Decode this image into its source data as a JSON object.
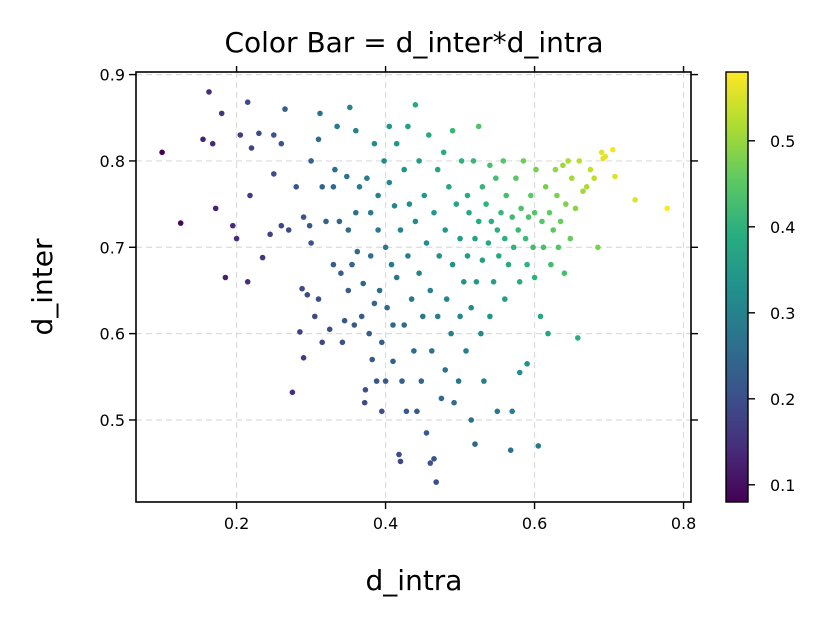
{
  "chart_data": {
    "type": "scatter",
    "title": "Color Bar = d_inter*d_intra",
    "xlabel": "d_intra",
    "ylabel": "d_inter",
    "xlim": [
      0.065,
      0.81
    ],
    "ylim": [
      0.405,
      0.903
    ],
    "xticks": [
      "0.2",
      "0.4",
      "0.6",
      "0.8"
    ],
    "yticks": [
      "0.5",
      "0.6",
      "0.7",
      "0.8",
      "0.9"
    ],
    "grid": true,
    "colormap": "viridis",
    "colorbar": {
      "range": [
        0.08,
        0.58
      ],
      "ticks": [
        "0.1",
        "0.2",
        "0.3",
        "0.4",
        "0.5"
      ]
    },
    "color_value": "d_inter*d_intra",
    "points": [
      [
        0.1,
        0.81
      ],
      [
        0.125,
        0.728
      ],
      [
        0.155,
        0.825
      ],
      [
        0.163,
        0.88
      ],
      [
        0.168,
        0.82
      ],
      [
        0.172,
        0.745
      ],
      [
        0.18,
        0.855
      ],
      [
        0.185,
        0.665
      ],
      [
        0.195,
        0.725
      ],
      [
        0.2,
        0.71
      ],
      [
        0.205,
        0.83
      ],
      [
        0.215,
        0.868
      ],
      [
        0.215,
        0.66
      ],
      [
        0.218,
        0.76
      ],
      [
        0.22,
        0.815
      ],
      [
        0.23,
        0.832
      ],
      [
        0.235,
        0.688
      ],
      [
        0.245,
        0.715
      ],
      [
        0.25,
        0.83
      ],
      [
        0.25,
        0.785
      ],
      [
        0.26,
        0.725
      ],
      [
        0.26,
        0.82
      ],
      [
        0.265,
        0.86
      ],
      [
        0.27,
        0.72
      ],
      [
        0.275,
        0.532
      ],
      [
        0.28,
        0.77
      ],
      [
        0.285,
        0.602
      ],
      [
        0.288,
        0.652
      ],
      [
        0.29,
        0.572
      ],
      [
        0.29,
        0.735
      ],
      [
        0.295,
        0.645
      ],
      [
        0.298,
        0.725
      ],
      [
        0.3,
        0.8
      ],
      [
        0.3,
        0.705
      ],
      [
        0.305,
        0.62
      ],
      [
        0.31,
        0.64
      ],
      [
        0.31,
        0.825
      ],
      [
        0.312,
        0.855
      ],
      [
        0.315,
        0.77
      ],
      [
        0.315,
        0.59
      ],
      [
        0.32,
        0.73
      ],
      [
        0.325,
        0.605
      ],
      [
        0.33,
        0.77
      ],
      [
        0.33,
        0.68
      ],
      [
        0.332,
        0.79
      ],
      [
        0.335,
        0.84
      ],
      [
        0.338,
        0.73
      ],
      [
        0.34,
        0.67
      ],
      [
        0.342,
        0.59
      ],
      [
        0.345,
        0.615
      ],
      [
        0.348,
        0.782
      ],
      [
        0.35,
        0.65
      ],
      [
        0.35,
        0.72
      ],
      [
        0.352,
        0.862
      ],
      [
        0.355,
        0.68
      ],
      [
        0.358,
        0.61
      ],
      [
        0.36,
        0.835
      ],
      [
        0.36,
        0.74
      ],
      [
        0.362,
        0.695
      ],
      [
        0.365,
        0.77
      ],
      [
        0.368,
        0.62
      ],
      [
        0.37,
        0.658
      ],
      [
        0.372,
        0.52
      ],
      [
        0.373,
        0.535
      ],
      [
        0.375,
        0.78
      ],
      [
        0.378,
        0.6
      ],
      [
        0.38,
        0.74
      ],
      [
        0.38,
        0.69
      ],
      [
        0.382,
        0.57
      ],
      [
        0.385,
        0.82
      ],
      [
        0.385,
        0.635
      ],
      [
        0.388,
        0.545
      ],
      [
        0.39,
        0.72
      ],
      [
        0.39,
        0.76
      ],
      [
        0.392,
        0.65
      ],
      [
        0.395,
        0.51
      ],
      [
        0.395,
        0.59
      ],
      [
        0.398,
        0.8
      ],
      [
        0.4,
        0.7
      ],
      [
        0.4,
        0.545
      ],
      [
        0.402,
        0.63
      ],
      [
        0.405,
        0.84
      ],
      [
        0.405,
        0.775
      ],
      [
        0.408,
        0.68
      ],
      [
        0.41,
        0.568
      ],
      [
        0.41,
        0.61
      ],
      [
        0.412,
        0.748
      ],
      [
        0.415,
        0.82
      ],
      [
        0.415,
        0.665
      ],
      [
        0.418,
        0.46
      ],
      [
        0.42,
        0.452
      ],
      [
        0.42,
        0.72
      ],
      [
        0.422,
        0.545
      ],
      [
        0.425,
        0.79
      ],
      [
        0.425,
        0.61
      ],
      [
        0.428,
        0.51
      ],
      [
        0.43,
        0.84
      ],
      [
        0.43,
        0.69
      ],
      [
        0.432,
        0.75
      ],
      [
        0.435,
        0.64
      ],
      [
        0.438,
        0.58
      ],
      [
        0.44,
        0.865
      ],
      [
        0.44,
        0.73
      ],
      [
        0.442,
        0.51
      ],
      [
        0.445,
        0.8
      ],
      [
        0.445,
        0.67
      ],
      [
        0.448,
        0.545
      ],
      [
        0.45,
        0.62
      ],
      [
        0.452,
        0.76
      ],
      [
        0.455,
        0.485
      ],
      [
        0.455,
        0.705
      ],
      [
        0.458,
        0.83
      ],
      [
        0.46,
        0.45
      ],
      [
        0.46,
        0.65
      ],
      [
        0.462,
        0.58
      ],
      [
        0.465,
        0.455
      ],
      [
        0.465,
        0.74
      ],
      [
        0.468,
        0.428
      ],
      [
        0.47,
        0.79
      ],
      [
        0.47,
        0.62
      ],
      [
        0.472,
        0.69
      ],
      [
        0.475,
        0.525
      ],
      [
        0.478,
        0.81
      ],
      [
        0.48,
        0.72
      ],
      [
        0.48,
        0.558
      ],
      [
        0.482,
        0.64
      ],
      [
        0.485,
        0.77
      ],
      [
        0.488,
        0.6
      ],
      [
        0.49,
        0.835
      ],
      [
        0.49,
        0.68
      ],
      [
        0.492,
        0.52
      ],
      [
        0.495,
        0.75
      ],
      [
        0.498,
        0.545
      ],
      [
        0.5,
        0.71
      ],
      [
        0.5,
        0.62
      ],
      [
        0.502,
        0.8
      ],
      [
        0.505,
        0.66
      ],
      [
        0.508,
        0.58
      ],
      [
        0.51,
        0.76
      ],
      [
        0.51,
        0.69
      ],
      [
        0.512,
        0.74
      ],
      [
        0.515,
        0.5
      ],
      [
        0.515,
        0.63
      ],
      [
        0.518,
        0.8
      ],
      [
        0.52,
        0.71
      ],
      [
        0.52,
        0.472
      ],
      [
        0.522,
        0.66
      ],
      [
        0.525,
        0.84
      ],
      [
        0.525,
        0.73
      ],
      [
        0.528,
        0.6
      ],
      [
        0.53,
        0.77
      ],
      [
        0.53,
        0.685
      ],
      [
        0.532,
        0.545
      ],
      [
        0.535,
        0.75
      ],
      [
        0.538,
        0.705
      ],
      [
        0.54,
        0.62
      ],
      [
        0.54,
        0.795
      ],
      [
        0.542,
        0.73
      ],
      [
        0.545,
        0.66
      ],
      [
        0.548,
        0.78
      ],
      [
        0.55,
        0.72
      ],
      [
        0.55,
        0.51
      ],
      [
        0.552,
        0.69
      ],
      [
        0.555,
        0.74
      ],
      [
        0.558,
        0.8
      ],
      [
        0.56,
        0.64
      ],
      [
        0.56,
        0.71
      ],
      [
        0.562,
        0.76
      ],
      [
        0.565,
        0.68
      ],
      [
        0.568,
        0.465
      ],
      [
        0.57,
        0.735
      ],
      [
        0.57,
        0.51
      ],
      [
        0.572,
        0.7
      ],
      [
        0.575,
        0.78
      ],
      [
        0.578,
        0.72
      ],
      [
        0.58,
        0.66
      ],
      [
        0.58,
        0.555
      ],
      [
        0.582,
        0.745
      ],
      [
        0.585,
        0.8
      ],
      [
        0.588,
        0.71
      ],
      [
        0.59,
        0.68
      ],
      [
        0.59,
        0.565
      ],
      [
        0.592,
        0.735
      ],
      [
        0.595,
        0.76
      ],
      [
        0.598,
        0.7
      ],
      [
        0.6,
        0.74
      ],
      [
        0.6,
        0.665
      ],
      [
        0.602,
        0.79
      ],
      [
        0.605,
        0.47
      ],
      [
        0.608,
        0.62
      ],
      [
        0.61,
        0.73
      ],
      [
        0.612,
        0.7
      ],
      [
        0.615,
        0.77
      ],
      [
        0.618,
        0.6
      ],
      [
        0.62,
        0.74
      ],
      [
        0.622,
        0.68
      ],
      [
        0.625,
        0.72
      ],
      [
        0.628,
        0.79
      ],
      [
        0.63,
        0.76
      ],
      [
        0.632,
        0.7
      ],
      [
        0.635,
        0.73
      ],
      [
        0.638,
        0.795
      ],
      [
        0.64,
        0.67
      ],
      [
        0.642,
        0.75
      ],
      [
        0.645,
        0.8
      ],
      [
        0.648,
        0.71
      ],
      [
        0.65,
        0.78
      ],
      [
        0.655,
        0.745
      ],
      [
        0.658,
        0.595
      ],
      [
        0.66,
        0.8
      ],
      [
        0.665,
        0.765
      ],
      [
        0.67,
        0.77
      ],
      [
        0.675,
        0.79
      ],
      [
        0.68,
        0.78
      ],
      [
        0.685,
        0.7
      ],
      [
        0.69,
        0.81
      ],
      [
        0.692,
        0.803
      ],
      [
        0.695,
        0.805
      ],
      [
        0.705,
        0.813
      ],
      [
        0.708,
        0.782
      ],
      [
        0.735,
        0.755
      ],
      [
        0.778,
        0.745
      ]
    ]
  }
}
